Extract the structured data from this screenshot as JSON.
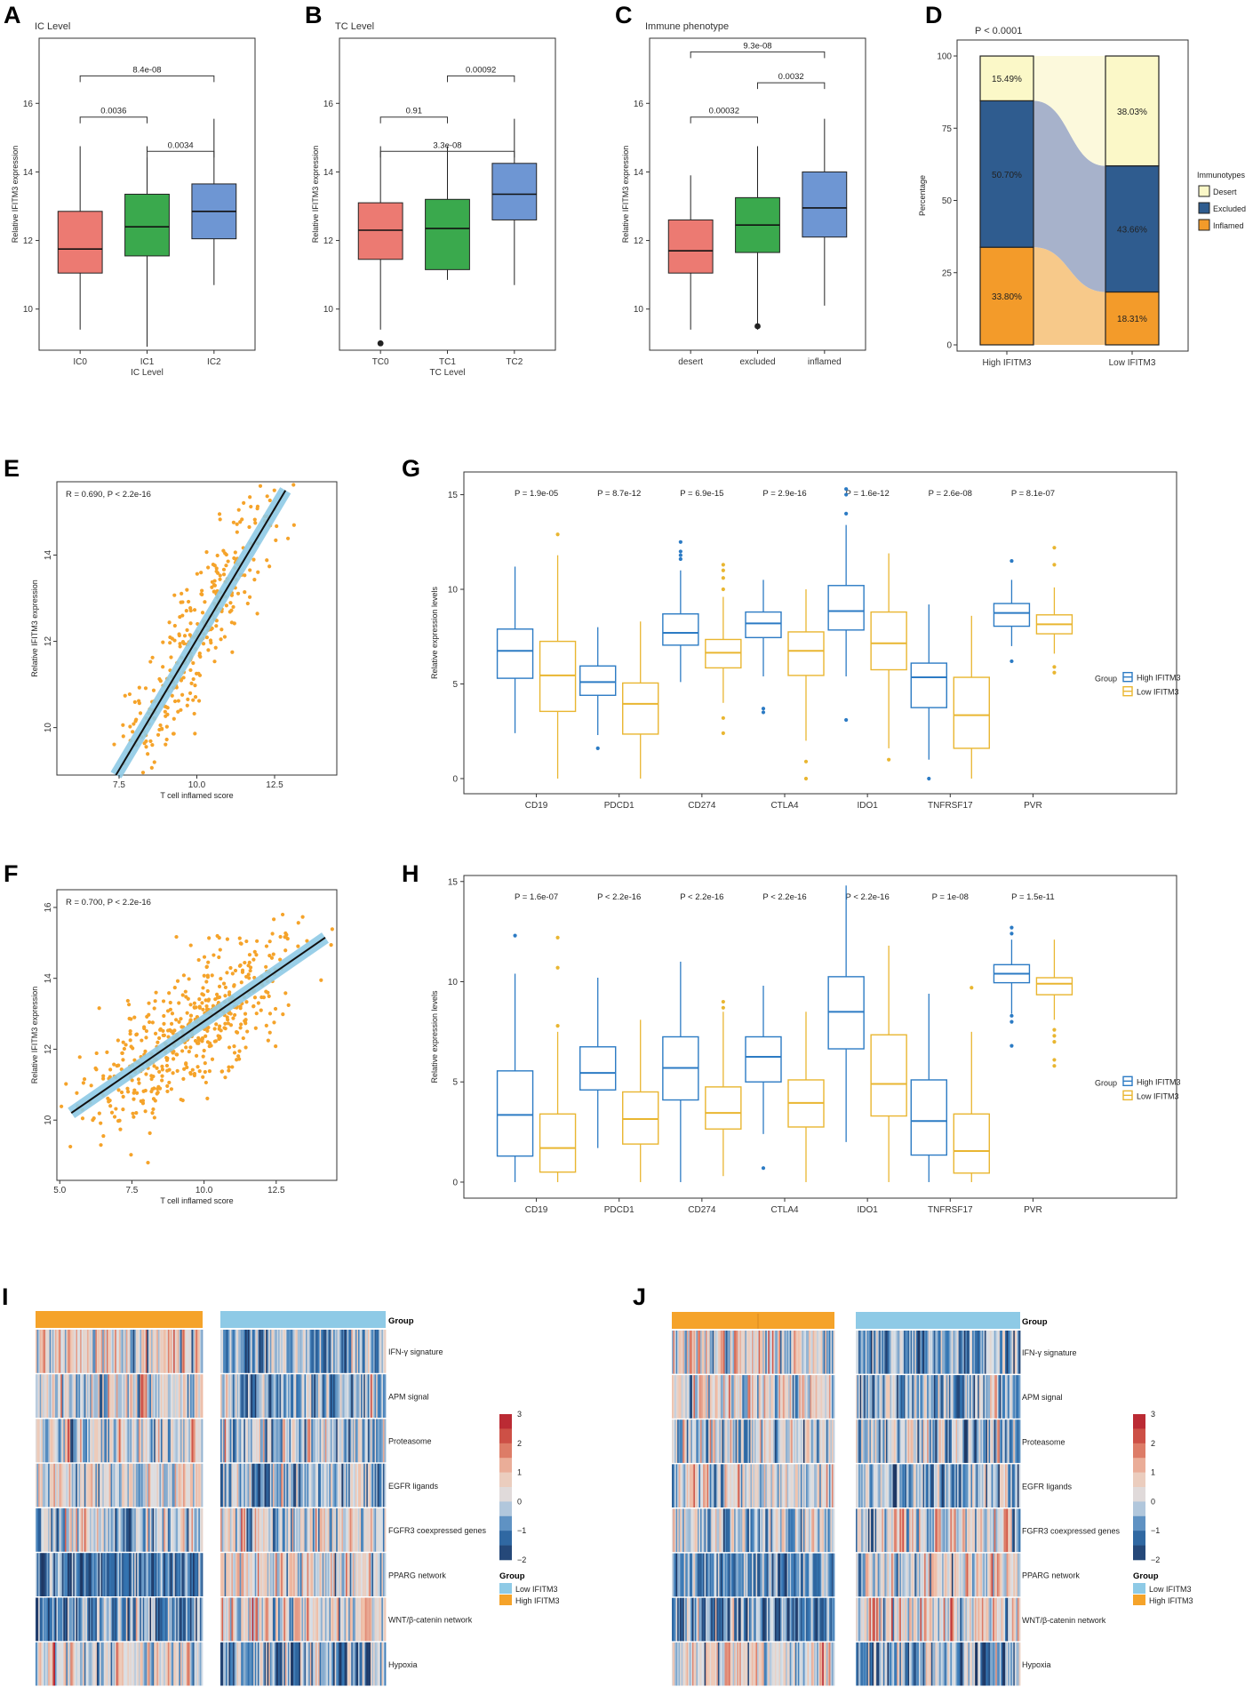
{
  "panel_letters": [
    "A",
    "B",
    "C",
    "D",
    "E",
    "F",
    "G",
    "H",
    "I",
    "J"
  ],
  "colors": {
    "red": "#ec7a72",
    "green": "#3aa94d",
    "blue": "#6e96d3",
    "orange": "#f5a32a",
    "lightblue": "#8ecae6",
    "highline": "#2c7bc4",
    "lowline": "#e9b631",
    "desert": "#fbf8c8",
    "excluded": "#2f5c8f",
    "inflamed": "#f39b2a"
  },
  "chart_data": [
    {
      "id": "A",
      "type": "box",
      "title": "IC Level",
      "xlabel": "IC Level",
      "ylabel": "Relative IFITM3 expression",
      "categories": [
        "IC0",
        "IC1",
        "IC2"
      ],
      "ylim": [
        8.8,
        17.9
      ],
      "yticks": [
        10,
        12,
        14,
        16
      ],
      "boxes": [
        {
          "min": 9.4,
          "q1": 11.05,
          "median": 11.75,
          "q3": 12.85,
          "max": 14.75,
          "outliers": []
        },
        {
          "min": 8.9,
          "q1": 11.55,
          "median": 12.4,
          "q3": 13.35,
          "max": 14.75,
          "outliers": []
        },
        {
          "min": 10.7,
          "q1": 12.05,
          "median": 12.85,
          "q3": 13.65,
          "max": 15.55,
          "outliers": []
        }
      ],
      "brackets": [
        {
          "from": 0,
          "to": 1,
          "y": 15.6,
          "label": "0.0036"
        },
        {
          "from": 1,
          "to": 2,
          "y": 14.6,
          "label": "0.0034"
        },
        {
          "from": 0,
          "to": 2,
          "y": 16.8,
          "label": "8.4e-08"
        }
      ]
    },
    {
      "id": "B",
      "type": "box",
      "title": "TC Level",
      "xlabel": "TC Level",
      "ylabel": "Relative IFITM3 expression",
      "categories": [
        "TC0",
        "TC1",
        "TC2"
      ],
      "ylim": [
        8.8,
        17.9
      ],
      "yticks": [
        10,
        12,
        14,
        16
      ],
      "boxes": [
        {
          "min": 9.4,
          "q1": 11.45,
          "median": 12.3,
          "q3": 13.1,
          "max": 14.75,
          "outliers": [
            9.0
          ]
        },
        {
          "min": 10.85,
          "q1": 11.15,
          "median": 12.35,
          "q3": 13.2,
          "max": 14.75,
          "outliers": []
        },
        {
          "min": 10.7,
          "q1": 12.6,
          "median": 13.35,
          "q3": 14.25,
          "max": 15.55,
          "outliers": []
        }
      ],
      "brackets": [
        {
          "from": 0,
          "to": 1,
          "y": 15.6,
          "label": "0.91"
        },
        {
          "from": 0,
          "to": 2,
          "y": 14.6,
          "label": "3.3e-08"
        },
        {
          "from": 1,
          "to": 2,
          "y": 16.8,
          "label": "0.00092"
        }
      ]
    },
    {
      "id": "C",
      "type": "box",
      "title": "Immune phenotype",
      "xlabel": "",
      "ylabel": "Relative IFITM3 expression",
      "categories": [
        "desert",
        "excluded",
        "inflamed"
      ],
      "ylim": [
        8.8,
        17.9
      ],
      "yticks": [
        10,
        12,
        14,
        16
      ],
      "boxes": [
        {
          "min": 9.4,
          "q1": 11.05,
          "median": 11.7,
          "q3": 12.6,
          "max": 13.9,
          "outliers": []
        },
        {
          "min": 9.4,
          "q1": 11.65,
          "median": 12.45,
          "q3": 13.25,
          "max": 14.75,
          "outliers": [
            9.5
          ]
        },
        {
          "min": 10.1,
          "q1": 12.1,
          "median": 12.95,
          "q3": 14.0,
          "max": 15.55,
          "outliers": []
        }
      ],
      "brackets": [
        {
          "from": 0,
          "to": 1,
          "y": 15.6,
          "label": "0.00032"
        },
        {
          "from": 1,
          "to": 2,
          "y": 16.6,
          "label": "0.0032"
        },
        {
          "from": 0,
          "to": 2,
          "y": 17.5,
          "label": "9.3e-08"
        }
      ]
    },
    {
      "id": "D",
      "type": "stacked-bar",
      "title": "P < 0.0001",
      "xlabel": "",
      "ylabel": "Percentage",
      "categories": [
        "High IFITM3",
        "Low IFITM3"
      ],
      "ylim": [
        0,
        100
      ],
      "yticks": [
        0,
        25,
        50,
        75,
        100
      ],
      "series": [
        {
          "name": "Inflamed",
          "values": [
            33.8,
            18.31
          ],
          "labels": [
            "33.80%",
            "18.31%"
          ]
        },
        {
          "name": "Excluded",
          "values": [
            50.7,
            43.66
          ],
          "labels": [
            "50.70%",
            "43.66%"
          ]
        },
        {
          "name": "Desert",
          "values": [
            15.49,
            38.03
          ],
          "labels": [
            "15.49%",
            "38.03%"
          ]
        }
      ],
      "legend_title": "Immunotypes",
      "legend": [
        "Desert",
        "Excluded",
        "Inflamed"
      ]
    },
    {
      "id": "E",
      "type": "scatter",
      "annotation": "R = 0.690, P < 2.2e-16",
      "xlabel": "T cell inflamed score",
      "ylabel": "Relative IFITM3 expression",
      "xlim": [
        5.5,
        14.5
      ],
      "ylim": [
        8.9,
        15.7
      ],
      "xticks": [
        7.5,
        10.0,
        12.5
      ],
      "xticklabels": [
        "7.5",
        "10.0",
        "12.5"
      ],
      "yticks": [
        10,
        12,
        14
      ],
      "fit": {
        "x0": 7.4,
        "y0": 8.9,
        "x1": 12.85,
        "y1": 15.5
      },
      "n_points": 330,
      "seed": 7,
      "x_mean": 10.0,
      "x_sd": 1.35,
      "slope": 1.21,
      "resid_sd": 1.0
    },
    {
      "id": "F",
      "type": "scatter",
      "annotation": "R = 0.700, P < 2.2e-16",
      "xlabel": "T cell inflamed score",
      "ylabel": "Relative IFITM3 expression",
      "xlim": [
        4.9,
        14.6
      ],
      "ylim": [
        8.3,
        16.5
      ],
      "xticks": [
        5.0,
        7.5,
        10.0,
        12.5
      ],
      "xticklabels": [
        "5.0",
        "7.5",
        "10.0",
        "12.5"
      ],
      "yticks": [
        10,
        12,
        14,
        16
      ],
      "fit": {
        "x0": 5.4,
        "y0": 10.2,
        "x1": 14.2,
        "y1": 15.15
      },
      "n_points": 520,
      "seed": 13,
      "x_mean": 9.6,
      "x_sd": 1.9,
      "slope": 0.563,
      "resid_sd": 1.1
    },
    {
      "id": "G",
      "type": "box",
      "ylabel": "Relative expression levels",
      "categories": [
        "CD19",
        "PDCD1",
        "CD274",
        "CTLA4",
        "IDO1",
        "TNFRSF17",
        "PVR"
      ],
      "pvalues": [
        "P = 1.9e-05",
        "P = 8.7e-12",
        "P = 6.9e-15",
        "P = 2.9e-16",
        "P = 1.6e-12",
        "P = 2.6e-08",
        "P = 8.1e-07"
      ],
      "ylim": [
        -0.8,
        16.2
      ],
      "yticks": [
        0,
        5,
        10,
        15
      ],
      "legend_title": "Group",
      "legend": [
        "High IFITM3",
        "Low IFITM3"
      ],
      "series": [
        {
          "name": "High IFITM3",
          "boxes": [
            {
              "min": 2.4,
              "q1": 5.3,
              "median": 6.75,
              "q3": 7.9,
              "max": 11.2,
              "outliers": []
            },
            {
              "min": 2.3,
              "q1": 4.4,
              "median": 5.1,
              "q3": 5.95,
              "max": 8.0,
              "outliers": [
                1.6
              ]
            },
            {
              "min": 5.1,
              "q1": 7.05,
              "median": 7.7,
              "q3": 8.7,
              "max": 11.0,
              "outliers": [
                11.6,
                11.8,
                12.0,
                12.5
              ]
            },
            {
              "min": 5.4,
              "q1": 7.45,
              "median": 8.2,
              "q3": 8.8,
              "max": 10.5,
              "outliers": [
                3.5,
                3.7
              ]
            },
            {
              "min": 5.4,
              "q1": 7.85,
              "median": 8.85,
              "q3": 10.2,
              "max": 13.4,
              "outliers": [
                3.1,
                14.0,
                15.0,
                15.3
              ]
            },
            {
              "min": 1.0,
              "q1": 3.75,
              "median": 5.35,
              "q3": 6.1,
              "max": 9.2,
              "outliers": [
                0.0
              ]
            },
            {
              "min": 7.0,
              "q1": 8.05,
              "median": 8.75,
              "q3": 9.25,
              "max": 10.5,
              "outliers": [
                6.2,
                11.5
              ]
            }
          ]
        },
        {
          "name": "Low IFITM3",
          "boxes": [
            {
              "min": 0.0,
              "q1": 3.55,
              "median": 5.45,
              "q3": 7.25,
              "max": 11.8,
              "outliers": [
                12.9
              ]
            },
            {
              "min": 0.0,
              "q1": 2.35,
              "median": 3.95,
              "q3": 5.05,
              "max": 8.3,
              "outliers": []
            },
            {
              "min": 4.0,
              "q1": 5.85,
              "median": 6.65,
              "q3": 7.35,
              "max": 9.6,
              "outliers": [
                2.4,
                3.2,
                10.0,
                10.6,
                11.0,
                11.3
              ]
            },
            {
              "min": 2.0,
              "q1": 5.45,
              "median": 6.75,
              "q3": 7.75,
              "max": 10.0,
              "outliers": [
                0.0,
                0.9
              ]
            },
            {
              "min": 1.6,
              "q1": 5.75,
              "median": 7.15,
              "q3": 8.8,
              "max": 11.9,
              "outliers": [
                1.0
              ]
            },
            {
              "min": 0.0,
              "q1": 1.6,
              "median": 3.35,
              "q3": 5.35,
              "max": 8.6,
              "outliers": []
            },
            {
              "min": 6.6,
              "q1": 7.65,
              "median": 8.15,
              "q3": 8.65,
              "max": 10.1,
              "outliers": [
                5.6,
                5.9,
                11.3,
                12.2
              ]
            }
          ]
        }
      ]
    },
    {
      "id": "H",
      "type": "box",
      "ylabel": "Relative expression levels",
      "categories": [
        "CD19",
        "PDCD1",
        "CD274",
        "CTLA4",
        "IDO1",
        "TNFRSF17",
        "PVR"
      ],
      "pvalues": [
        "P = 1.6e-07",
        "P < 2.2e-16",
        "P < 2.2e-16",
        "P < 2.2e-16",
        "P < 2.2e-16",
        "P = 1e-08",
        "P = 1.5e-11"
      ],
      "ylim": [
        -0.8,
        15.3
      ],
      "yticks": [
        0,
        5,
        10,
        15
      ],
      "legend_title": "Group",
      "legend": [
        "High IFITM3",
        "Low IFITM3"
      ],
      "series": [
        {
          "name": "High IFITM3",
          "boxes": [
            {
              "min": 0.0,
              "q1": 1.3,
              "median": 3.35,
              "q3": 5.55,
              "max": 10.4,
              "outliers": [
                12.3
              ]
            },
            {
              "min": 1.7,
              "q1": 4.6,
              "median": 5.45,
              "q3": 6.75,
              "max": 10.2,
              "outliers": []
            },
            {
              "min": 0.0,
              "q1": 4.1,
              "median": 5.7,
              "q3": 7.25,
              "max": 11.0,
              "outliers": []
            },
            {
              "min": 2.4,
              "q1": 5.0,
              "median": 6.25,
              "q3": 7.25,
              "max": 9.8,
              "outliers": [
                0.7
              ]
            },
            {
              "min": 2.0,
              "q1": 6.65,
              "median": 8.5,
              "q3": 10.25,
              "max": 14.8,
              "outliers": []
            },
            {
              "min": 0.0,
              "q1": 1.35,
              "median": 3.05,
              "q3": 5.1,
              "max": 9.4,
              "outliers": []
            },
            {
              "min": 8.4,
              "q1": 9.95,
              "median": 10.4,
              "q3": 10.85,
              "max": 12.1,
              "outliers": [
                6.8,
                8.0,
                8.3,
                12.4,
                12.7
              ]
            }
          ]
        },
        {
          "name": "Low IFITM3",
          "boxes": [
            {
              "min": 0.0,
              "q1": 0.5,
              "median": 1.7,
              "q3": 3.4,
              "max": 7.5,
              "outliers": [
                7.8,
                10.7,
                12.2
              ]
            },
            {
              "min": 0.0,
              "q1": 1.9,
              "median": 3.15,
              "q3": 4.5,
              "max": 8.1,
              "outliers": []
            },
            {
              "min": 0.3,
              "q1": 2.65,
              "median": 3.45,
              "q3": 4.75,
              "max": 8.5,
              "outliers": [
                8.7,
                9.0
              ]
            },
            {
              "min": 0.0,
              "q1": 2.75,
              "median": 3.95,
              "q3": 5.1,
              "max": 8.5,
              "outliers": []
            },
            {
              "min": 0.0,
              "q1": 3.3,
              "median": 4.9,
              "q3": 7.35,
              "max": 11.8,
              "outliers": []
            },
            {
              "min": 0.0,
              "q1": 0.45,
              "median": 1.55,
              "q3": 3.4,
              "max": 7.5,
              "outliers": [
                9.7
              ]
            },
            {
              "min": 8.1,
              "q1": 9.35,
              "median": 9.9,
              "q3": 10.2,
              "max": 12.1,
              "outliers": [
                5.8,
                6.1,
                7.0,
                7.3,
                7.6
              ]
            }
          ]
        }
      ]
    },
    {
      "id": "I",
      "type": "heatmap",
      "rows": [
        "IFN-γ signature",
        "APM signal",
        "Proteasome",
        "EGFR ligands",
        "FGFR3 coexpressed genes",
        "PPARG network",
        "WNT/β-catenin network",
        "Hypoxia"
      ],
      "annotation_label": "Group",
      "groups": [
        {
          "name": "High IFITM3",
          "n": 120
        },
        {
          "name": "Low IFITM3",
          "n": 120
        }
      ],
      "row_bias": [
        [
          0.5,
          -0.6
        ],
        [
          0.2,
          -0.4
        ],
        [
          0.2,
          -0.3
        ],
        [
          0.3,
          -0.4
        ],
        [
          -0.2,
          0.2
        ],
        [
          -0.9,
          0.4
        ],
        [
          -0.8,
          0.5
        ],
        [
          0.3,
          -0.7
        ]
      ],
      "colorbar": {
        "min": -2,
        "max": 3,
        "ticks": [
          3,
          2,
          1,
          0,
          -1,
          -2
        ],
        "ticklabels": [
          "3",
          "2",
          "1",
          "0",
          "−1",
          "−2"
        ]
      },
      "legend_title": "Group",
      "legend": [
        "Low IFITM3",
        "High IFITM3"
      ],
      "seed": 21
    },
    {
      "id": "J",
      "type": "heatmap",
      "rows": [
        "IFN-γ signature",
        "APM signal",
        "Proteasome",
        "EGFR ligands",
        "FGFR3 coexpressed genes",
        "PPARG network",
        "WNT/β-catenin network",
        "Hypoxia"
      ],
      "annotation_label": "Group",
      "groups": [
        {
          "name": "High IFITM3",
          "n": 120
        },
        {
          "name": "Low IFITM3",
          "n": 120
        }
      ],
      "row_bias": [
        [
          0.4,
          -0.6
        ],
        [
          0.2,
          -0.4
        ],
        [
          0.2,
          -0.3
        ],
        [
          0.3,
          -0.3
        ],
        [
          -0.1,
          0.2
        ],
        [
          -0.9,
          0.3
        ],
        [
          -0.9,
          0.5
        ],
        [
          0.3,
          -0.7
        ]
      ],
      "colorbar": {
        "min": -2,
        "max": 3,
        "ticks": [
          3,
          2,
          1,
          0,
          -1,
          -2
        ],
        "ticklabels": [
          "3",
          "2",
          "1",
          "0",
          "−1",
          "−2"
        ]
      },
      "legend_title": "Group",
      "legend": [
        "Low IFITM3",
        "High IFITM3"
      ],
      "seed": 37
    }
  ]
}
